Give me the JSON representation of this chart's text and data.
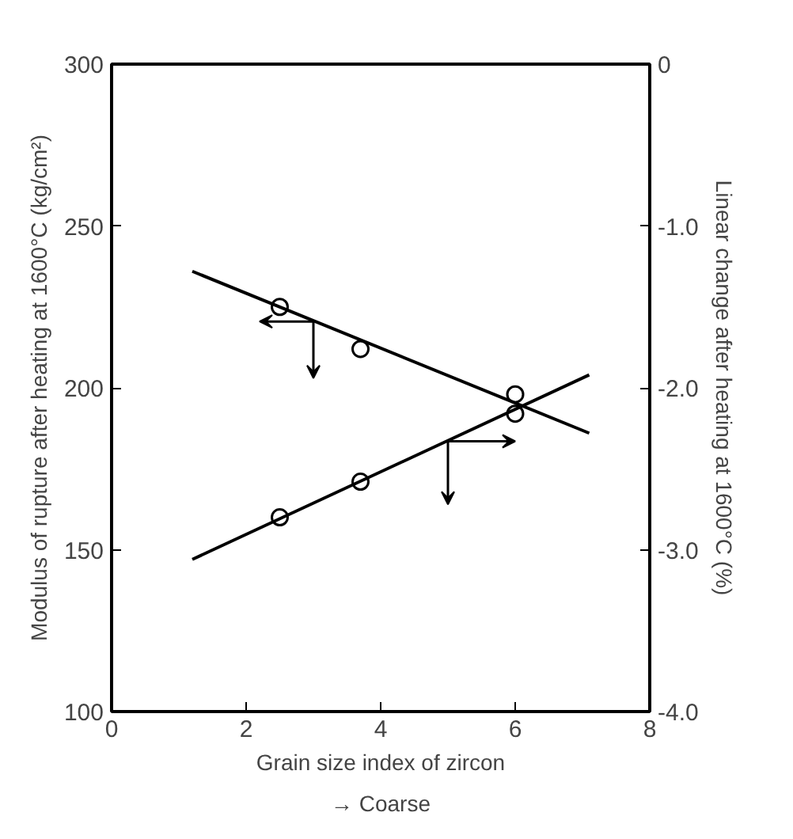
{
  "chart_data": {
    "type": "scatter",
    "xlabel": "Grain size index of zircon",
    "ylabel": "Modulus of rupture after heating at 1600°C (kg/cm²)",
    "y2label": "Linear change after heating at 1600°C (%)",
    "annotations": [
      "→ Coarse"
    ],
    "xlim": [
      0,
      8
    ],
    "xticks": [
      0,
      2,
      4,
      6,
      8
    ],
    "ylim": [
      100,
      300
    ],
    "yticks": [
      100,
      150,
      200,
      250,
      300
    ],
    "y2lim": [
      -4,
      0
    ],
    "y2ticks": [
      {
        "value": -4,
        "label": "-4.0"
      },
      {
        "value": -3,
        "label": "-3.0"
      },
      {
        "value": -2,
        "label": "-2.0"
      },
      {
        "value": -1,
        "label": "-1.0"
      },
      {
        "value": 0,
        "label": "0"
      }
    ],
    "grid": false,
    "marker": "circle",
    "series": [
      {
        "color": "#000000",
        "x": [
          2.5,
          3.7,
          6.0
        ],
        "values": [
          225,
          212,
          198
        ]
      },
      {
        "type": "line",
        "marker": "none",
        "color": "#000000",
        "x": [
          1.2,
          7.1
        ],
        "values": [
          236,
          186
        ]
      },
      {
        "axis": "y2",
        "color": "#000000",
        "x": [
          2.5,
          3.7,
          6.0
        ],
        "values": [
          -2.8,
          -2.58,
          -2.16
        ]
      },
      {
        "type": "line",
        "marker": "none",
        "axis": "y2",
        "color": "#000000",
        "x": [
          1.2,
          7.1
        ],
        "values": [
          -3.06,
          -1.92
        ]
      }
    ]
  }
}
